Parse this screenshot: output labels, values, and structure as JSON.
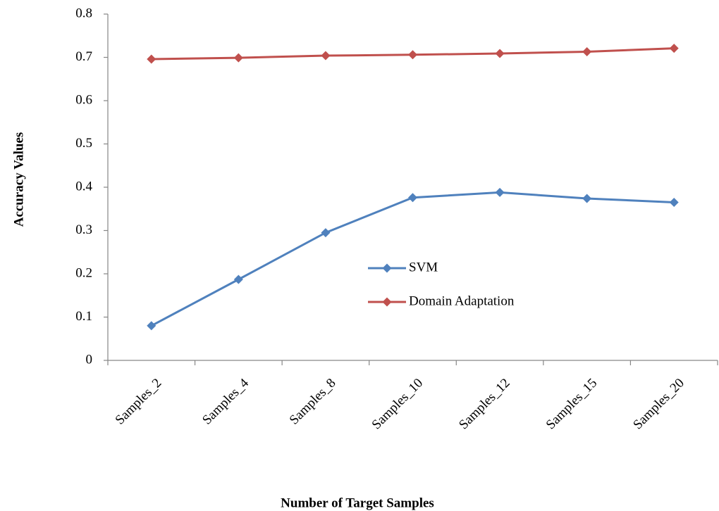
{
  "chart_data": {
    "type": "line",
    "x_label": "Number of Target Samples",
    "y_label": "Accuracy Values",
    "categories": [
      "Samples_2",
      "Samples_4",
      "Samples_8",
      "Samples_10",
      "Samples_12",
      "Samples_15",
      "Samples_20"
    ],
    "series": [
      {
        "name": "SVM",
        "color": "#4f81bd",
        "values": [
          0.08,
          0.187,
          0.295,
          0.376,
          0.388,
          0.374,
          0.365
        ]
      },
      {
        "name": "Domain Adaptation",
        "color": "#c0504d",
        "values": [
          0.696,
          0.699,
          0.704,
          0.706,
          0.709,
          0.713,
          0.721
        ]
      }
    ],
    "ylim": [
      0,
      0.8
    ],
    "yticks": [
      0,
      0.1,
      0.2,
      0.3,
      0.4,
      0.5,
      0.6,
      0.7,
      0.8
    ],
    "grid": false,
    "legend": "center"
  }
}
